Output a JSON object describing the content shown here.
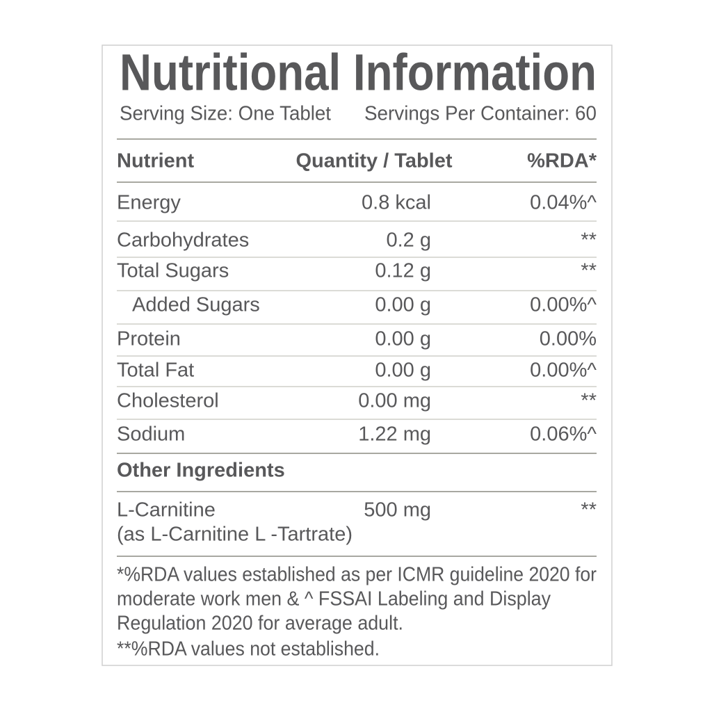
{
  "title": "Nutritional Information",
  "serving_size": "Serving Size: One Tablet",
  "servings_per_container": "Servings Per Container: 60",
  "table": {
    "header": [
      "Nutrient",
      "Quantity / Tablet",
      "%RDA*"
    ],
    "rows": [
      [
        "Energy",
        "0.8 kcal",
        "0.04%^"
      ],
      [
        "Carbohydrates",
        "0.2 g",
        "**"
      ],
      [
        "Total Sugars",
        "0.12 g",
        "**"
      ],
      [
        "Added Sugars",
        "0.00 g",
        "0.00%^"
      ],
      [
        "Protein",
        "0.00 g",
        "0.00%"
      ],
      [
        "Total Fat",
        "0.00 g",
        "0.00%^"
      ],
      [
        "Cholesterol",
        "0.00 mg",
        "**"
      ],
      [
        "Sodium",
        "1.22 mg",
        "0.06%^"
      ]
    ]
  },
  "other_ingredients": {
    "heading": "Other Ingredients",
    "name": [
      "L-Carnitine",
      "(as L-Carnitine L -Tartrate)"
    ],
    "quantity": "500 mg",
    "rda": "**"
  },
  "footnotes": [
    "*%RDA values established as per ICMR guideline 2020 for",
    "moderate work men & ^ FSSAI Labeling and Display",
    "Regulation 2020 for average adult.",
    "**%RDA values not established."
  ]
}
